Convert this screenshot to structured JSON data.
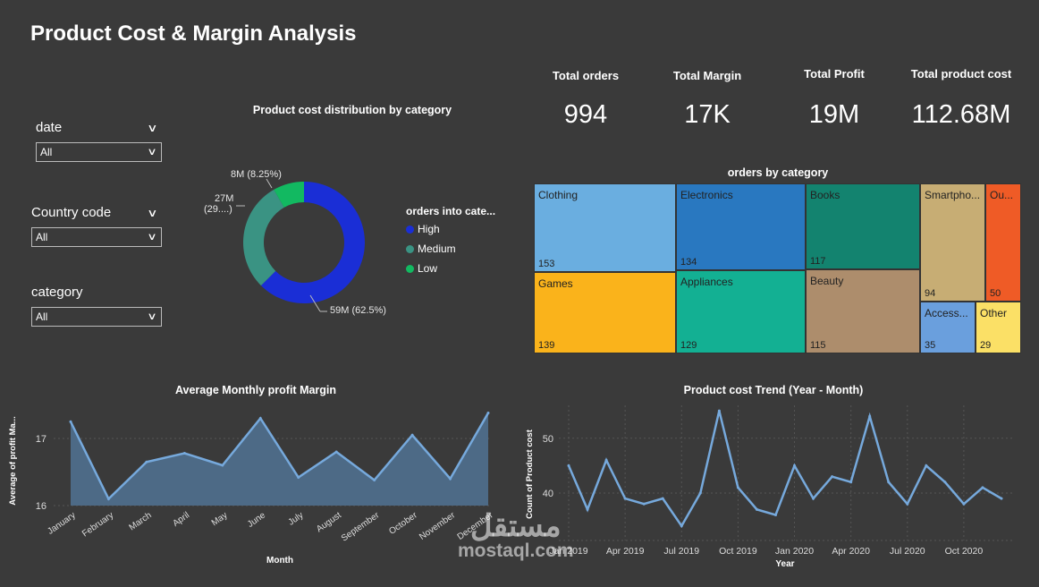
{
  "title": "Product Cost & Margin Analysis",
  "kpis": [
    {
      "label": "Total orders",
      "value": "994"
    },
    {
      "label": "Total Margin",
      "value": "17K"
    },
    {
      "label": "Total Profit",
      "value": "19M"
    },
    {
      "label": "Total product cost",
      "value": "112.68M"
    }
  ],
  "slicers": [
    {
      "label": "date",
      "value": "All"
    },
    {
      "label": "Country code",
      "value": "All"
    },
    {
      "label": "category",
      "value": "All"
    }
  ],
  "donut": {
    "title": "Product cost distribution by category",
    "legend_title": "orders into cate...",
    "slices": [
      {
        "name": "High",
        "value": 62.5,
        "label": "59M (62.5%)",
        "color": "#1a2ed6"
      },
      {
        "name": "Medium",
        "value": 29.25,
        "label_line1": "27M",
        "label_line2": "(29....)",
        "color": "#3a9383"
      },
      {
        "name": "Low",
        "value": 8.25,
        "label": "8M (8.25%)",
        "color": "#12b961"
      }
    ]
  },
  "treemap": {
    "title": "orders by category",
    "tiles": [
      {
        "name": "Clothing",
        "value": "153",
        "color": "#6aaee0"
      },
      {
        "name": "Games",
        "value": "139",
        "color": "#fab31b"
      },
      {
        "name": "Electronics",
        "value": "134",
        "color": "#2978c0"
      },
      {
        "name": "Appliances",
        "value": "129",
        "color": "#13b093"
      },
      {
        "name": "Books",
        "value": "117",
        "color": "#13836f"
      },
      {
        "name": "Beauty",
        "value": "115",
        "color": "#ad8d6c"
      },
      {
        "name": "Smartpho...",
        "value": "94",
        "color": "#c7ad74"
      },
      {
        "name": "Ou...",
        "value": "50",
        "color": "#ef5b26"
      },
      {
        "name": "Access...",
        "value": "35",
        "color": "#6a9fdd"
      },
      {
        "name": "Other",
        "value": "29",
        "color": "#fbe066"
      }
    ]
  },
  "chart_data": [
    {
      "type": "area",
      "title": "Average Monthly profit Margin",
      "xlabel": "Month",
      "ylabel": "Average of profit Ma...",
      "categories": [
        "January",
        "February",
        "March",
        "April",
        "May",
        "June",
        "July",
        "August",
        "September",
        "October",
        "November",
        "December"
      ],
      "values": [
        17.25,
        16.1,
        16.65,
        16.78,
        16.6,
        17.3,
        16.42,
        16.8,
        16.38,
        17.05,
        16.4,
        17.38
      ],
      "yticks": [
        "16",
        "17"
      ],
      "ylim": [
        16,
        17.4
      ],
      "color": "#76a9dc"
    },
    {
      "type": "line",
      "title": "Product cost Trend (Year - Month)",
      "xlabel": "Year",
      "ylabel": "Count of Product cost",
      "x": [
        "Jan 2019",
        "Feb 2019",
        "Mar 2019",
        "Apr 2019",
        "May 2019",
        "Jun 2019",
        "Jul 2019",
        "Aug 2019",
        "Sep 2019",
        "Oct 2019",
        "Nov 2019",
        "Dec 2019",
        "Jan 2020",
        "Feb 2020",
        "Mar 2020",
        "Apr 2020",
        "May 2020",
        "Jun 2020",
        "Jul 2020",
        "Aug 2020",
        "Sep 2020",
        "Oct 2020",
        "Nov 2020",
        "Dec 2020"
      ],
      "values": [
        45,
        37,
        46,
        39,
        38,
        39,
        34,
        40,
        55,
        41,
        37,
        36,
        45,
        39,
        43,
        42,
        54,
        42,
        38,
        45,
        42,
        38,
        41,
        39
      ],
      "xticks": [
        "Jan 2019",
        "Apr 2019",
        "Jul 2019",
        "Oct 2019",
        "Jan 2020",
        "Apr 2020",
        "Jul 2020",
        "Oct 2020"
      ],
      "yticks": [
        "40",
        "50"
      ],
      "ylim": [
        32,
        56
      ],
      "color": "#76a9dc"
    }
  ],
  "watermark": {
    "ar": "مستقل",
    "en": "mostaql.com"
  }
}
